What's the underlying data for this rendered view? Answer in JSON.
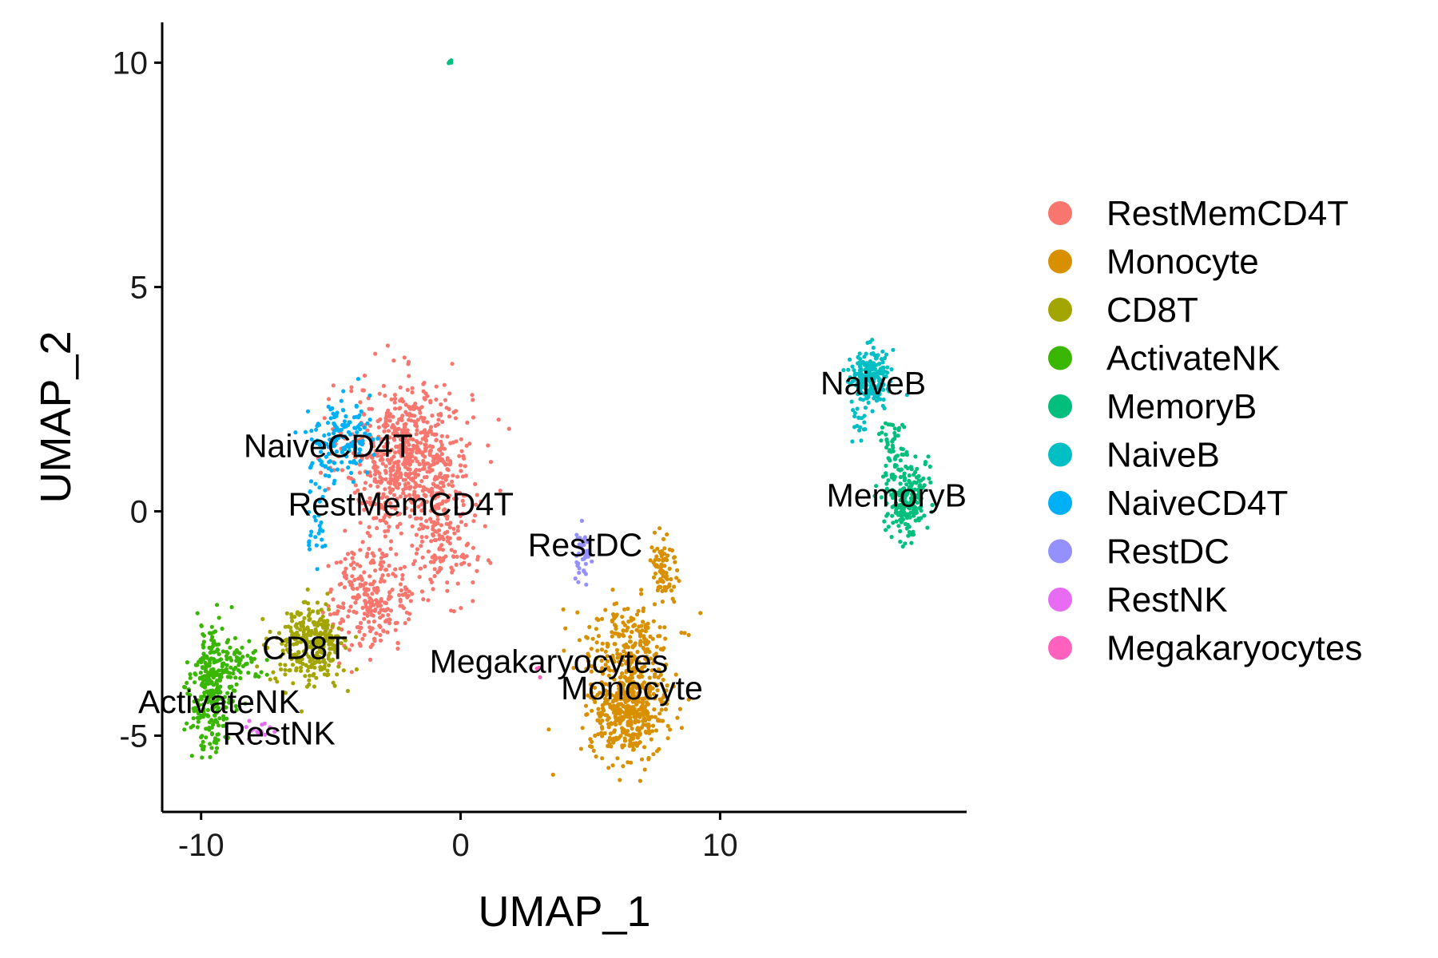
{
  "chart_data": {
    "type": "scatter",
    "xlabel": "UMAP_1",
    "ylabel": "UMAP_2",
    "xlim": [
      -11.5,
      19.5
    ],
    "ylim": [
      -6.7,
      10.9
    ],
    "x_ticks": [
      -10,
      0,
      10
    ],
    "x_tick_labels": [
      "-10",
      "0",
      "10"
    ],
    "y_ticks": [
      -5,
      0,
      5,
      10
    ],
    "y_tick_labels": [
      "-5",
      "0",
      "5",
      "10"
    ],
    "grid": false,
    "legend_position": "right",
    "series": [
      {
        "name": "RestMemCD4T",
        "color": "#F8766D",
        "label_text": "RestMemCD4T",
        "label_pos": [
          -2.3,
          0.1
        ],
        "clusters": [
          {
            "cx": -2.0,
            "cy": 1.2,
            "sx": 1.6,
            "sy": 1.1,
            "n": 700
          },
          {
            "cx": -3.4,
            "cy": -1.9,
            "sx": 1.1,
            "sy": 0.8,
            "n": 260
          },
          {
            "cx": -0.6,
            "cy": -0.8,
            "sx": 0.8,
            "sy": 0.7,
            "n": 120
          }
        ]
      },
      {
        "name": "Monocyte",
        "color": "#D89000",
        "label_text": "Monocyte",
        "label_pos": [
          6.6,
          -4.0
        ],
        "clusters": [
          {
            "cx": 6.5,
            "cy": -4.4,
            "sx": 1.0,
            "sy": 0.7,
            "n": 480
          },
          {
            "cx": 6.4,
            "cy": -2.9,
            "sx": 1.2,
            "sy": 0.6,
            "n": 180
          },
          {
            "cx": 7.8,
            "cy": -1.3,
            "sx": 0.35,
            "sy": 0.6,
            "n": 80
          }
        ]
      },
      {
        "name": "CD8T",
        "color": "#A3A500",
        "label_text": "CD8T",
        "label_pos": [
          -6.0,
          -3.1
        ],
        "clusters": [
          {
            "cx": -5.8,
            "cy": -3.0,
            "sx": 0.9,
            "sy": 0.6,
            "n": 300
          }
        ]
      },
      {
        "name": "ActivateNK",
        "color": "#39B600",
        "label_text": "ActivateNK",
        "label_pos": [
          -9.3,
          -4.3
        ],
        "clusters": [
          {
            "cx": -9.6,
            "cy": -4.0,
            "sx": 0.55,
            "sy": 0.9,
            "n": 280
          },
          {
            "cx": -8.7,
            "cy": -3.3,
            "sx": 0.7,
            "sy": 0.3,
            "n": 60
          }
        ]
      },
      {
        "name": "MemoryB",
        "color": "#00BF7D",
        "label_text": "MemoryB",
        "label_pos": [
          16.8,
          0.3
        ],
        "clusters": [
          {
            "cx": 17.2,
            "cy": 0.3,
            "sx": 0.5,
            "sy": 0.6,
            "n": 220
          },
          {
            "cx": 16.6,
            "cy": 1.5,
            "sx": 0.3,
            "sy": 0.5,
            "n": 50
          },
          {
            "cx": -0.4,
            "cy": 10.0,
            "sx": 0.05,
            "sy": 0.05,
            "n": 8
          }
        ]
      },
      {
        "name": "NaiveB",
        "color": "#00BFC4",
        "label_text": "NaiveB",
        "label_pos": [
          15.9,
          2.8
        ],
        "clusters": [
          {
            "cx": 15.8,
            "cy": 3.0,
            "sx": 0.5,
            "sy": 0.4,
            "n": 220
          },
          {
            "cx": 15.4,
            "cy": 2.0,
            "sx": 0.2,
            "sy": 0.4,
            "n": 20
          }
        ]
      },
      {
        "name": "NaiveCD4T",
        "color": "#00B0F6",
        "label_text": "NaiveCD4T",
        "label_pos": [
          -5.1,
          1.4
        ],
        "clusters": [
          {
            "cx": -4.7,
            "cy": 1.6,
            "sx": 0.8,
            "sy": 0.6,
            "n": 150
          },
          {
            "cx": -5.6,
            "cy": -0.2,
            "sx": 0.3,
            "sy": 0.6,
            "n": 30
          }
        ]
      },
      {
        "name": "RestDC",
        "color": "#9590FF",
        "label_text": "RestDC",
        "label_pos": [
          4.8,
          -0.8
        ],
        "clusters": [
          {
            "cx": 4.7,
            "cy": -0.9,
            "sx": 0.2,
            "sy": 0.4,
            "n": 40
          }
        ]
      },
      {
        "name": "RestNK",
        "color": "#E76BF3",
        "label_text": "RestNK",
        "label_pos": [
          -7.0,
          -5.0
        ],
        "clusters": [
          {
            "cx": -7.7,
            "cy": -4.9,
            "sx": 0.3,
            "sy": 0.15,
            "n": 14
          }
        ]
      },
      {
        "name": "Megakaryocytes",
        "color": "#FF62BC",
        "label_text": "Megakaryocytes",
        "label_pos": [
          3.4,
          -3.4
        ],
        "clusters": [
          {
            "cx": 3.0,
            "cy": -3.6,
            "sx": 0.1,
            "sy": 0.1,
            "n": 3
          }
        ]
      }
    ]
  }
}
